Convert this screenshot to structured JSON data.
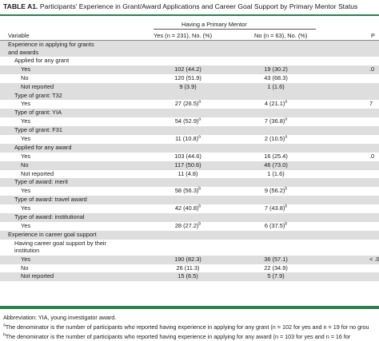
{
  "table": {
    "title_label": "TABLE A1.",
    "title_text": "Participants' Experience in Grant/Award Applications and Career Goal Support by Primary Mentor Status",
    "group_header": "Having a Primary Mentor",
    "variable_header": "Variable",
    "col_yes": "Yes (n = 231), No. (%)",
    "col_no": "No (n = 63), No. (%)",
    "col_p": "P",
    "rows": [
      {
        "label": "Experience in applying for grants and awards",
        "yes": "",
        "no": "",
        "p": "",
        "yes_sup": "",
        "no_sup": ""
      },
      {
        "label": "Applied for any grant",
        "yes": "",
        "no": "",
        "p": "",
        "yes_sup": "",
        "no_sup": ""
      },
      {
        "label": "Yes",
        "yes": "102 (44.2)",
        "no": "19 (30.2)",
        "p": ".0",
        "yes_sup": "",
        "no_sup": ""
      },
      {
        "label": "No",
        "yes": "120 (51.9)",
        "no": "43 (68.3)",
        "p": "",
        "yes_sup": "",
        "no_sup": ""
      },
      {
        "label": "Not reported",
        "yes": "9 (3.9)",
        "no": "1 (1.6)",
        "p": "",
        "yes_sup": "",
        "no_sup": ""
      },
      {
        "label": "Type of grant: T32",
        "yes": "",
        "no": "",
        "p": "",
        "yes_sup": "",
        "no_sup": ""
      },
      {
        "label": "Yes",
        "yes": "27 (26.5)",
        "no": "4 (21.1)",
        "p": "7",
        "yes_sup": "a",
        "no_sup": "a"
      },
      {
        "label": "Type of grant: YIA",
        "yes": "",
        "no": "",
        "p": "",
        "yes_sup": "",
        "no_sup": ""
      },
      {
        "label": "Yes",
        "yes": "54 (52.9)",
        "no": "7 (36.8)",
        "p": "",
        "yes_sup": "a",
        "no_sup": "a"
      },
      {
        "label": "Type of grant: F31",
        "yes": "",
        "no": "",
        "p": "",
        "yes_sup": "",
        "no_sup": ""
      },
      {
        "label": "Yes",
        "yes": "11 (10.8)",
        "no": "2 (10.5)",
        "p": "",
        "yes_sup": "a",
        "no_sup": "a"
      },
      {
        "label": "Applied for any award",
        "yes": "",
        "no": "",
        "p": "",
        "yes_sup": "",
        "no_sup": ""
      },
      {
        "label": "Yes",
        "yes": "103 (44.6)",
        "no": "16 (25.4)",
        "p": ".0",
        "yes_sup": "",
        "no_sup": ""
      },
      {
        "label": "No",
        "yes": "117 (50.6)",
        "no": "46 (73.0)",
        "p": "",
        "yes_sup": "",
        "no_sup": ""
      },
      {
        "label": "Not reported",
        "yes": "11 (4.8)",
        "no": "1 (1.6)",
        "p": "",
        "yes_sup": "",
        "no_sup": ""
      },
      {
        "label": "Type of award: merit",
        "yes": "",
        "no": "",
        "p": "",
        "yes_sup": "",
        "no_sup": ""
      },
      {
        "label": "Yes",
        "yes": "58 (56.3)",
        "no": "9 (56.2)",
        "p": "",
        "yes_sup": "b",
        "no_sup": "b"
      },
      {
        "label": "Type of award: travel award",
        "yes": "",
        "no": "",
        "p": "",
        "yes_sup": "",
        "no_sup": ""
      },
      {
        "label": "Yes",
        "yes": "42 (40.8)",
        "no": "7 (43.8)",
        "p": "",
        "yes_sup": "b",
        "no_sup": "b"
      },
      {
        "label": "Type of award: institutional",
        "yes": "",
        "no": "",
        "p": "",
        "yes_sup": "",
        "no_sup": ""
      },
      {
        "label": "Yes",
        "yes": "28 (27.2)",
        "no": "6 (37.5)",
        "p": "",
        "yes_sup": "b",
        "no_sup": "b"
      },
      {
        "label": "Experience in career goal support",
        "yes": "",
        "no": "",
        "p": "",
        "yes_sup": "",
        "no_sup": ""
      },
      {
        "label": "Having career goal support by their institution",
        "yes": "",
        "no": "",
        "p": "",
        "yes_sup": "",
        "no_sup": ""
      },
      {
        "label": "Yes",
        "yes": "190 (82.3)",
        "no": "36 (57.1)",
        "p": "< .0",
        "yes_sup": "",
        "no_sup": ""
      },
      {
        "label": "No",
        "yes": "26 (11.3)",
        "no": "22 (34.9)",
        "p": "",
        "yes_sup": "",
        "no_sup": ""
      },
      {
        "label": "Not reported",
        "yes": "15 (6.5)",
        "no": "5 (7.9)",
        "p": "",
        "yes_sup": "",
        "no_sup": ""
      }
    ]
  },
  "footnotes": {
    "abbreviation": "Abbreviation: YIA, young investigator award.",
    "note_a_mark": "a",
    "note_a": "The denominator is the number of participants who reported having experience in applying for any grant (n = 102 for yes and n = 19 for no grou",
    "note_b_mark": "b",
    "note_b": "The denominator is the number of participants who reported having experience in applying for any award (n = 103 for yes and n = 16 for"
  }
}
